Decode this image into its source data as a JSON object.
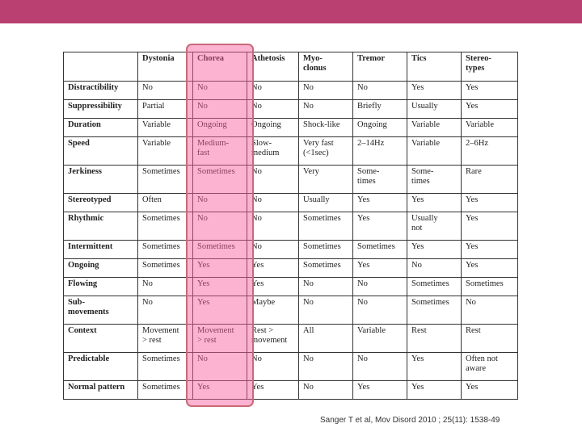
{
  "colors": {
    "top_bar": "#b94070",
    "highlight": "#f6609e",
    "highlight_border": "#c86a78"
  },
  "table": {
    "columns": [
      "",
      "Dystonia",
      "Chorea",
      "Athetosis",
      "Myo-\nclonus",
      "Tremor",
      "Tics",
      "Stereo-\ntypes"
    ],
    "highlighted_column": "Chorea",
    "rows": [
      [
        "Distractibility",
        "No",
        "No",
        "No",
        "No",
        "No",
        "Yes",
        "Yes"
      ],
      [
        "Suppressibility",
        "Partial",
        "No",
        "No",
        "No",
        "Briefly",
        "Usually",
        "Yes"
      ],
      [
        "Duration",
        "Variable",
        "Ongoing",
        "Ongoing",
        "Shock-like",
        "Ongoing",
        "Variable",
        "Variable"
      ],
      [
        "Speed",
        "Variable",
        "Medium-\nfast",
        "Slow-\nmedium",
        "Very fast\n(<1sec)",
        "2–14Hz",
        "Variable",
        "2–6Hz"
      ],
      [
        "Jerkiness",
        "Sometimes",
        "Sometimes",
        "No",
        "Very",
        "Some-\ntimes",
        "Some-\ntimes",
        "Rare"
      ],
      [
        "Stereotyped",
        "Often",
        "No",
        "No",
        "Usually",
        "Yes",
        "Yes",
        "Yes"
      ],
      [
        "Rhythmic",
        "Sometimes",
        "No",
        "No",
        "Sometimes",
        "Yes",
        "Usually\nnot",
        "Yes"
      ],
      [
        "Intermittent",
        "Sometimes",
        "Sometimes",
        "No",
        "Sometimes",
        "Sometimes",
        "Yes",
        "Yes"
      ],
      [
        "Ongoing",
        "Sometimes",
        "Yes",
        "Yes",
        "Sometimes",
        "Yes",
        "No",
        "Yes"
      ],
      [
        "Flowing",
        "No",
        "Yes",
        "Yes",
        "No",
        "No",
        "Sometimes",
        "Sometimes"
      ],
      [
        "Sub-\nmovements",
        "No",
        "Yes",
        "Maybe",
        "No",
        "No",
        "Sometimes",
        "No"
      ],
      [
        "Context",
        "Movement\n> rest",
        "Movement\n> rest",
        "Rest >\nmovement",
        "All",
        "Variable",
        "Rest",
        "Rest"
      ],
      [
        "Predictable",
        "Sometimes",
        "No",
        "No",
        "No",
        "No",
        "Yes",
        "Often not\naware"
      ],
      [
        "Normal pattern",
        "Sometimes",
        "Yes",
        "Yes",
        "No",
        "Yes",
        "Yes",
        "Yes"
      ]
    ]
  },
  "citation": "Sanger T et al,  Mov Disord 2010 ; 25(11): 1538-49"
}
